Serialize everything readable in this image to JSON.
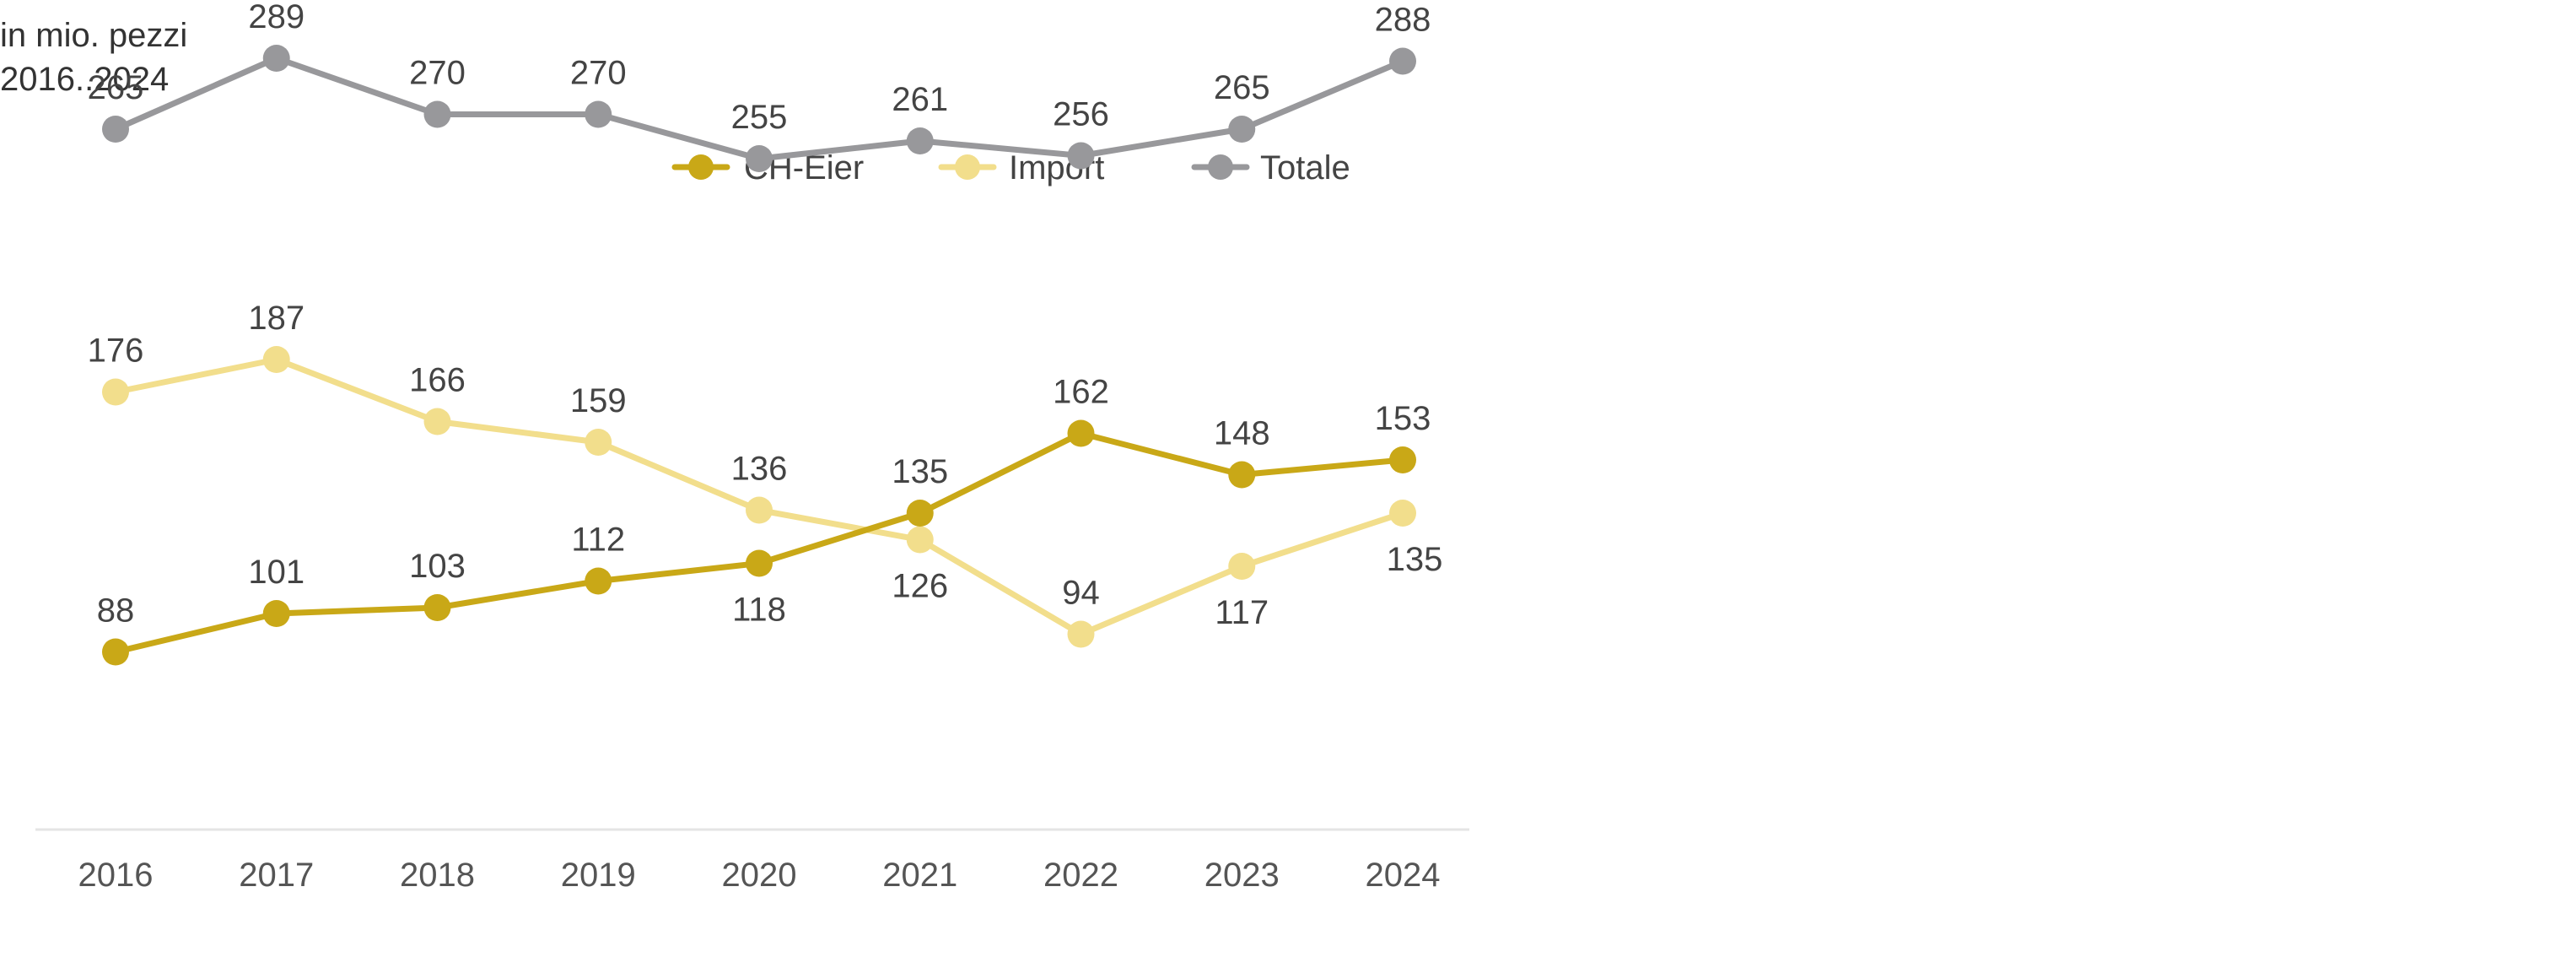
{
  "header": {
    "unit": "in mio. pezzi",
    "period": "2016..2024"
  },
  "colors": {
    "ch_eier": "#C9A817",
    "import": "#F2DE8C",
    "totale": "#98989B",
    "text": "#444444",
    "axis": "#E5E5E5"
  },
  "chart_data": {
    "type": "line",
    "x": [
      "2016",
      "2017",
      "2018",
      "2019",
      "2020",
      "2021",
      "2022",
      "2023",
      "2024"
    ],
    "series": [
      {
        "name": "CH-Eier",
        "values": [
          88,
          101,
          103,
          112,
          118,
          135,
          162,
          148,
          153
        ]
      },
      {
        "name": "Import",
        "values": [
          176,
          187,
          166,
          159,
          136,
          126,
          94,
          117,
          135
        ]
      },
      {
        "name": "Totale",
        "values": [
          265,
          289,
          270,
          270,
          255,
          261,
          256,
          265,
          288
        ]
      }
    ],
    "ylim": [
      0,
      320
    ],
    "grid": false,
    "legend": "top-center",
    "data_labels": true
  }
}
